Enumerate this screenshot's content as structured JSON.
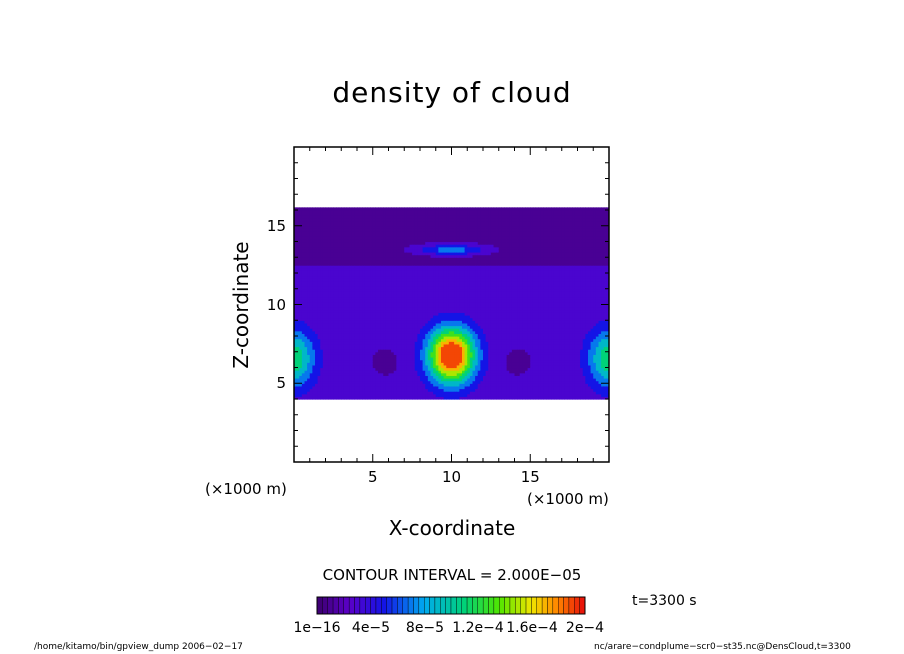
{
  "chart_data": {
    "type": "heatmap",
    "title": "density of cloud",
    "xlabel": "X-coordinate",
    "ylabel": "Z-coordinate",
    "x_unit_label": "(×1000 m)",
    "x_unit_label_2": "(×1000 m)",
    "xlim": [
      0,
      20
    ],
    "ylim": [
      0,
      20
    ],
    "x_ticks": [
      5,
      10,
      15
    ],
    "y_ticks": [
      5,
      10,
      15
    ],
    "x_tick_labels": [
      "5",
      "10",
      "15"
    ],
    "y_tick_labels": [
      "5",
      "10",
      "15"
    ],
    "contour_interval_label": "CONTOUR INTERVAL = 2.000E−05",
    "time_label": "t=3300 s",
    "colorbar": {
      "tick_labels": [
        "1e−16",
        "4e−5",
        "8e−5",
        "1.2e−4",
        "1.6e−4",
        "2e−4"
      ],
      "tick_values": [
        1e-16,
        4e-05,
        8e-05,
        0.00012,
        0.00016,
        0.0002
      ],
      "range": [
        0,
        0.0002
      ]
    },
    "field_features": [
      {
        "kind": "anvil_layer",
        "x": [
          0,
          20
        ],
        "z": [
          12.5,
          16.2
        ],
        "value": 1.5e-05
      },
      {
        "kind": "lower_layer",
        "x": [
          0,
          20
        ],
        "z": [
          4.0,
          12.5
        ],
        "value": 2.5e-05
      },
      {
        "kind": "core",
        "x": 10,
        "z": 6.8,
        "peak": 0.000195
      },
      {
        "kind": "side_core",
        "x": 0,
        "z": 6.6,
        "peak": 9e-05
      },
      {
        "kind": "side_core",
        "x": 20,
        "z": 6.6,
        "peak": 9e-05
      },
      {
        "kind": "anvil_band",
        "x": [
          7,
          13
        ],
        "z": 13.5,
        "peak": 6e-05
      }
    ]
  },
  "footer": {
    "left": "/home/kitamo/bin/gpview_dump   2006−02−17",
    "right": "nc/arare−condplume−scr0−st35.nc@DensCloud,t=3300"
  }
}
